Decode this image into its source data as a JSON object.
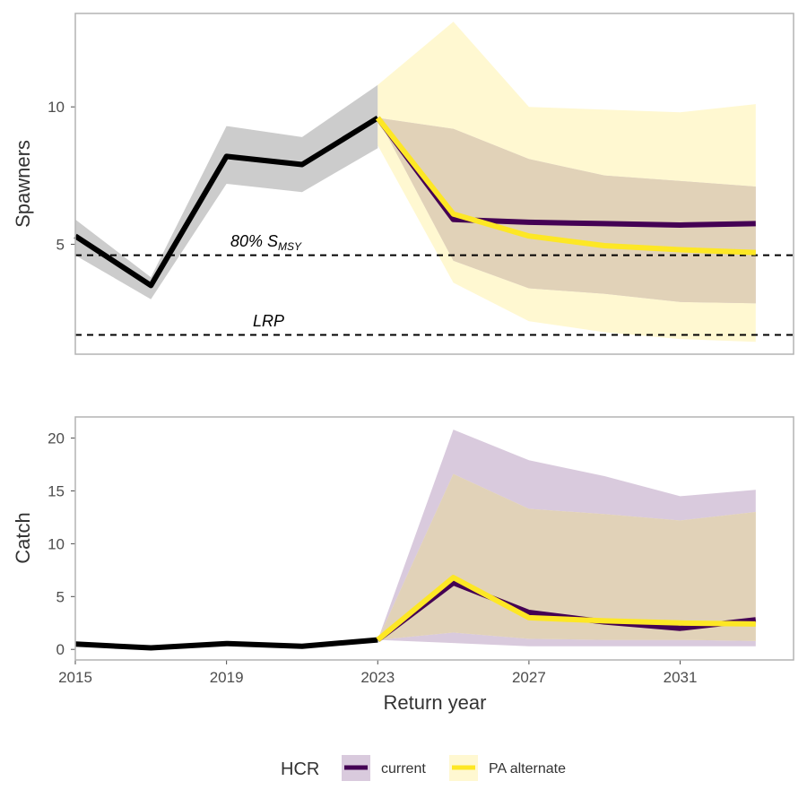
{
  "colors": {
    "historical": "#000000",
    "historical_band": "#cccccc",
    "current": "#440154",
    "current_band": "#d9cadd",
    "pa_alternate": "#fde725",
    "pa_band": "#fff8d1",
    "overlap_band": "#e1d2b8",
    "panel_border": "#b3b3b3",
    "reference_line": "#000000"
  },
  "chart_data": [
    {
      "type": "line",
      "ylabel": "Spawners",
      "xlim": [
        2015,
        2034
      ],
      "ylim": [
        1.0,
        13.4
      ],
      "y_ticks": [
        5,
        10
      ],
      "y_tick_labels": [
        "5",
        "10"
      ],
      "reference_lines": [
        {
          "label": "80% S",
          "subscript": "MSY",
          "y": 4.6,
          "label_x": 2017.2,
          "label_y": 5.25
        },
        {
          "label": "LRP",
          "subscript": "",
          "y": 1.7,
          "label_x": 2017.6,
          "label_y": 2.3
        }
      ],
      "historical": {
        "x": [
          2015,
          2017,
          2019,
          2021,
          2023
        ],
        "y": [
          5.3,
          3.5,
          8.2,
          7.9,
          9.6
        ],
        "lower": [
          4.6,
          3.0,
          7.2,
          6.9,
          8.5
        ],
        "upper": [
          5.9,
          3.8,
          9.3,
          8.9,
          10.8
        ]
      },
      "series": [
        {
          "name": "current",
          "x": [
            2023,
            2025,
            2027,
            2029,
            2031,
            2033
          ],
          "y": [
            9.6,
            5.9,
            5.8,
            5.75,
            5.7,
            5.75
          ],
          "lower": [
            9.6,
            4.4,
            3.4,
            3.2,
            2.9,
            2.85
          ],
          "upper": [
            9.6,
            9.2,
            8.1,
            7.5,
            7.3,
            7.1
          ]
        },
        {
          "name": "PA alternate",
          "x": [
            2023,
            2025,
            2027,
            2029,
            2031,
            2033
          ],
          "y": [
            9.6,
            6.1,
            5.3,
            4.95,
            4.8,
            4.7
          ],
          "lower": [
            8.6,
            3.6,
            2.2,
            1.8,
            1.55,
            1.45
          ],
          "upper": [
            10.8,
            13.1,
            10.0,
            9.9,
            9.8,
            10.1
          ]
        }
      ]
    },
    {
      "type": "line",
      "ylabel": "Catch",
      "xlabel": "Return year",
      "xlim": [
        2015,
        2034
      ],
      "ylim": [
        -1.0,
        22.0
      ],
      "y_ticks": [
        0,
        5,
        10,
        15,
        20
      ],
      "y_tick_labels": [
        "0",
        "5",
        "10",
        "15",
        "20"
      ],
      "x_ticks": [
        2015,
        2019,
        2023,
        2027,
        2031
      ],
      "x_tick_labels": [
        "2015",
        "2019",
        "2023",
        "2027",
        "2031"
      ],
      "historical": {
        "x": [
          2015,
          2017,
          2019,
          2021,
          2023
        ],
        "y": [
          0.5,
          0.15,
          0.55,
          0.3,
          0.9
        ]
      },
      "series": [
        {
          "name": "current",
          "x": [
            2023,
            2025,
            2027,
            2029,
            2031,
            2033
          ],
          "y": [
            0.9,
            6.3,
            3.5,
            2.6,
            2.0,
            2.8
          ],
          "lower": [
            0.9,
            0.6,
            0.3,
            0.3,
            0.3,
            0.3
          ],
          "upper": [
            0.9,
            20.8,
            17.9,
            16.4,
            14.5,
            15.1
          ]
        },
        {
          "name": "PA alternate",
          "x": [
            2023,
            2025,
            2027,
            2029,
            2031,
            2033
          ],
          "y": [
            0.9,
            6.8,
            3.0,
            2.7,
            2.5,
            2.4
          ],
          "lower": [
            0.9,
            1.6,
            1.0,
            0.9,
            0.9,
            0.8
          ],
          "upper": [
            0.9,
            16.6,
            13.3,
            12.8,
            12.2,
            13.0
          ]
        }
      ]
    }
  ],
  "legend": {
    "title": "HCR",
    "items": [
      "current",
      "PA alternate"
    ]
  }
}
